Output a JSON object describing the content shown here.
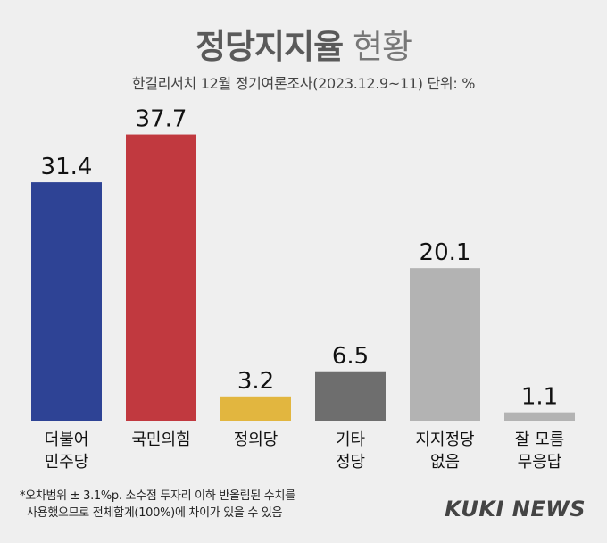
{
  "title": {
    "main": "정당지지율",
    "rest": "현황"
  },
  "subtitle": "한길리서치 12월 정기여론조사(2023.12.9~11) 단위: %",
  "footnote": [
    "*오차범위 ± 3.1%p. 소수점 두자리 이하 반올림된 수치를",
    "사용했으므로 전체합계(100%)에 차이가 있을 수 있음"
  ],
  "logo": "KUKI NEWS",
  "colors": {
    "background": "#efefef",
    "bars": [
      "#2e4395",
      "#c1393f",
      "#e2b63f",
      "#6e6e6e",
      "#b3b3b3",
      "#b3b3b3"
    ]
  },
  "chart_data": {
    "type": "bar",
    "categories": [
      [
        "더불어",
        "민주당"
      ],
      [
        "국민의힘"
      ],
      [
        "정의당"
      ],
      [
        "기타",
        "정당"
      ],
      [
        "지지정당",
        "없음"
      ],
      [
        "잘 모름",
        "무응답"
      ]
    ],
    "values": [
      31.4,
      37.7,
      3.2,
      6.5,
      20.1,
      1.1
    ],
    "value_labels": [
      "31.4",
      "37.7",
      "3.2",
      "6.5",
      "20.1",
      "1.1"
    ],
    "ylim": [
      0,
      40
    ],
    "xlabel": "",
    "ylabel": "",
    "grid": false,
    "legend": "none"
  }
}
